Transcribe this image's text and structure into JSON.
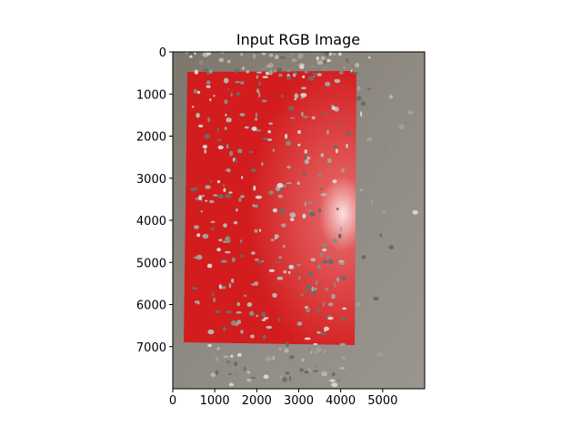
{
  "chart_data": {
    "type": "image",
    "title": "Input RGB Image",
    "xlim": [
      0,
      6000
    ],
    "xticks": [
      0,
      1000,
      2000,
      3000,
      4000,
      5000
    ],
    "ylim": [
      8000,
      0
    ],
    "yticks": [
      0,
      1000,
      2000,
      3000,
      4000,
      5000,
      6000,
      7000
    ]
  }
}
